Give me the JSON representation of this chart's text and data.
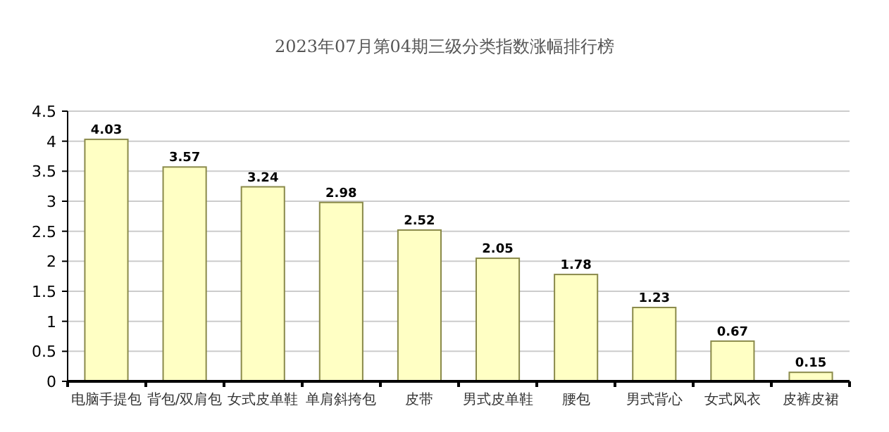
{
  "chart_data": {
    "type": "bar",
    "title": "2023年07月第04期三级分类指数涨幅排行榜",
    "categories": [
      "电脑手提包",
      "背包/双肩包",
      "女式皮单鞋",
      "单肩斜挎包",
      "皮带",
      "男式皮单鞋",
      "腰包",
      "男式背心",
      "女式风衣",
      "皮裤皮裙"
    ],
    "values": [
      4.03,
      3.57,
      3.24,
      2.98,
      2.52,
      2.05,
      1.78,
      1.23,
      0.67,
      0.15
    ],
    "color": "#ffffc4",
    "ylim": [
      0,
      4.5
    ],
    "yticks": [
      0,
      0.5,
      1,
      1.5,
      2,
      2.5,
      3,
      3.5,
      4,
      4.5
    ],
    "grid": "y",
    "data_labels": true
  }
}
